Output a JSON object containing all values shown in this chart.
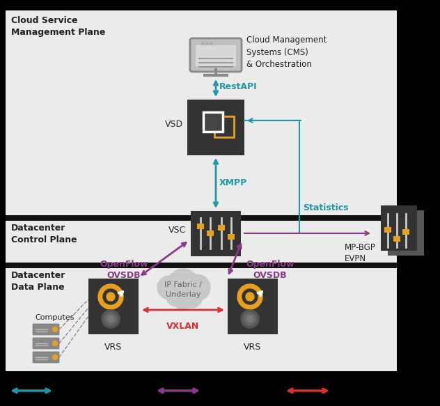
{
  "bg_color": "#000000",
  "zone_bg": "#ebebeb",
  "zone_border": "#111111",
  "dark_box": "#333333",
  "dark_box2": "#555555",
  "arrow_blue": "#2196a6",
  "arrow_purple": "#8B3A8B",
  "arrow_red": "#d63030",
  "text_dark": "#222222",
  "orange": "#e8a020",
  "white": "#ffffff",
  "cloud_color": "#c8c8c8",
  "monitor_body": "#888888",
  "monitor_screen": "#b0b0b0",
  "zone1_label": "Cloud Service\nManagement Plane",
  "zone2_label": "Datacenter\nControl Plane",
  "zone3_label": "Datacenter\nData Plane",
  "vsd_label": "VSD",
  "vsc_label": "VSC",
  "vrs1_label": "VRS",
  "vrs2_label": "VRS",
  "cms_label": "Cloud Management\nSystems (CMS)\n& Orchestration",
  "restapi_label": "RestAPI",
  "xmpp_label": "XMPP",
  "statistics_label": "Statistics",
  "openflow1_label": "OpenFlow\nOVSDB",
  "openflow2_label": "OpenFlow\nOVSDB",
  "mpbgp_label": "MP-BGP\nEVPN",
  "ipfabric_label": "IP Fabric /\nUnderlay",
  "vxlan_label": "VXLAN",
  "computes_label": "Computes",
  "figw": 6.32,
  "figh": 5.83,
  "dpi": 100
}
